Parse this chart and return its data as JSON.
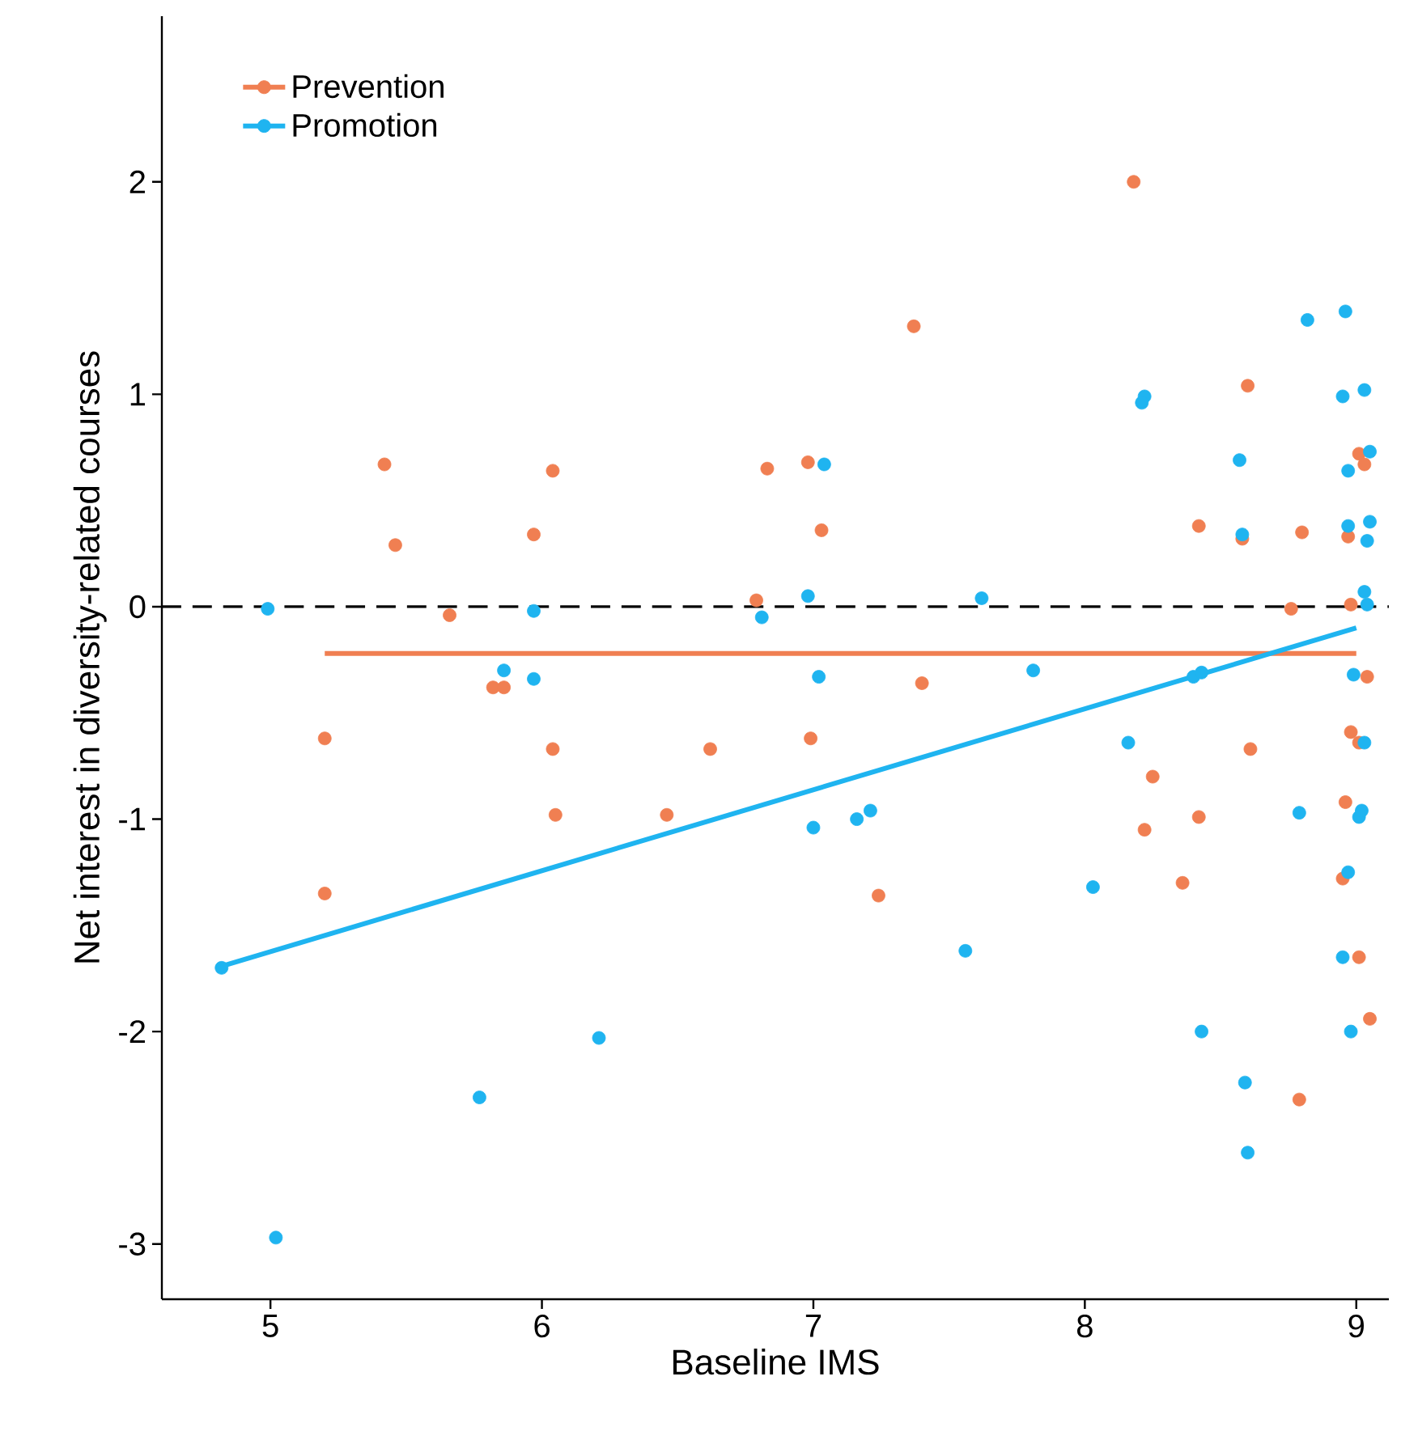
{
  "chart_data": {
    "type": "scatter",
    "xlabel": "Baseline IMS",
    "ylabel": "Net interest in diversity-related courses",
    "xlim": [
      4.6,
      9.12
    ],
    "ylim": [
      -3.26,
      2.78
    ],
    "xticks": [
      5,
      6,
      7,
      8,
      9
    ],
    "yticks": [
      -3,
      -2,
      -1,
      0,
      1,
      2
    ],
    "grid": false,
    "legend": "top left",
    "marker": "circle",
    "ref_lines": [
      {
        "axis": "y",
        "value": 0,
        "color": "#000000",
        "line_style": "dashed"
      }
    ],
    "series": [
      {
        "name": "Prevention",
        "color": "#f07f52",
        "x": [
          5.42,
          6.04,
          6.83,
          5.46,
          5.97,
          6.79,
          5.66,
          5.82,
          5.86,
          5.2,
          6.04,
          6.62,
          6.05,
          6.46,
          5.2,
          7.37,
          6.98,
          7.03,
          8.42,
          7.4,
          6.99,
          8.25,
          8.22,
          8.42,
          8.36,
          7.24,
          8.6,
          8.58,
          8.8,
          8.97,
          9.01,
          9.03,
          8.76,
          8.98,
          9.04,
          8.61,
          8.98,
          9.01,
          8.96,
          8.95,
          9.01,
          9.05,
          8.79,
          8.18
        ],
        "values": [
          0.67,
          0.64,
          0.65,
          0.29,
          0.34,
          0.03,
          -0.04,
          -0.38,
          -0.38,
          -0.62,
          -0.67,
          -0.67,
          -0.98,
          -0.98,
          -1.35,
          1.32,
          0.68,
          0.36,
          0.38,
          -0.36,
          -0.62,
          -0.8,
          -1.05,
          -0.99,
          -1.3,
          -1.36,
          1.04,
          0.32,
          0.35,
          0.33,
          0.72,
          0.67,
          -0.01,
          0.01,
          -0.33,
          -0.67,
          -0.59,
          -0.64,
          -0.92,
          -1.28,
          -1.65,
          -1.94,
          -2.32,
          2.0
        ]
      },
      {
        "name": "Promotion",
        "color": "#1fb4f0",
        "x": [
          4.99,
          5.97,
          6.81,
          5.86,
          5.97,
          4.82,
          6.21,
          5.77,
          5.02,
          8.22,
          8.21,
          7.04,
          6.98,
          7.62,
          7.02,
          7.81,
          8.4,
          8.43,
          8.16,
          7.0,
          7.16,
          7.21,
          8.03,
          7.56,
          8.43,
          8.82,
          8.96,
          8.95,
          9.03,
          8.57,
          8.97,
          9.05,
          8.58,
          8.97,
          9.05,
          9.04,
          9.03,
          9.04,
          8.99,
          9.03,
          8.79,
          9.01,
          9.02,
          8.97,
          8.95,
          8.98,
          8.59,
          8.6
        ],
        "values": [
          -0.01,
          -0.02,
          -0.05,
          -0.3,
          -0.34,
          -1.7,
          -2.03,
          -2.31,
          -2.97,
          0.99,
          0.96,
          0.67,
          0.05,
          0.04,
          -0.33,
          -0.3,
          -0.33,
          -0.31,
          -0.64,
          -1.04,
          -1.0,
          -0.96,
          -1.32,
          -1.62,
          -2.0,
          1.35,
          1.39,
          0.99,
          1.02,
          0.69,
          0.64,
          0.73,
          0.34,
          0.38,
          0.4,
          0.31,
          0.07,
          0.01,
          -0.32,
          -0.64,
          -0.97,
          -0.99,
          -0.96,
          -1.25,
          -1.65,
          -2.0,
          -2.24,
          -2.57
        ]
      },
      {
        "color": "#f07f52",
        "type": "line",
        "marker": "none",
        "x": [
          5.2,
          9.0
        ],
        "values": [
          -0.22,
          -0.22
        ]
      },
      {
        "color": "#1fb4f0",
        "type": "line",
        "marker": "none",
        "x": [
          4.8,
          9.0
        ],
        "values": [
          -1.7,
          -0.1
        ]
      }
    ]
  }
}
